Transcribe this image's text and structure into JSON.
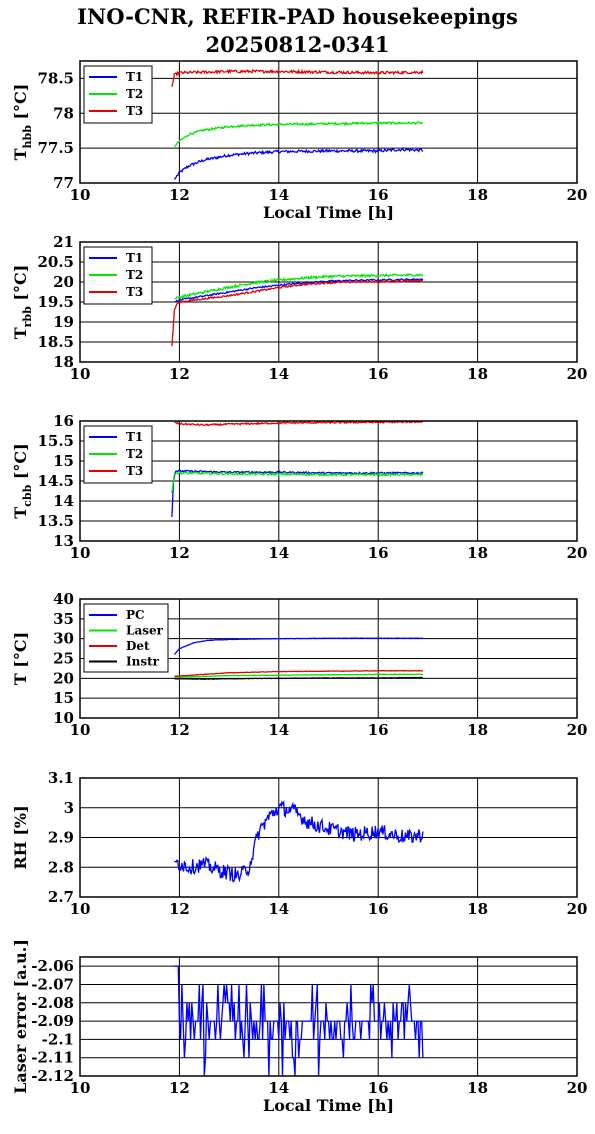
{
  "title": {
    "line1": "INO-CNR, REFIR-PAD housekeepings",
    "line2": "20250812-0341"
  },
  "colors": {
    "blue": "#0000ff",
    "green": "#00e600",
    "red": "#e60000",
    "black": "#000000"
  },
  "chart_data": [
    {
      "id": "hbb",
      "type": "line",
      "xlabel": "Local Time [h]",
      "ylabel_main": "T",
      "ylabel_sub": "hbb",
      "ylabel_unit": "[°C]",
      "xlim": [
        10,
        20
      ],
      "ylim": [
        77,
        78.75
      ],
      "xticks": [
        "10",
        "12",
        "14",
        "16",
        "18",
        "20"
      ],
      "yticks": [
        "77",
        "77.5",
        "78",
        "78.5"
      ],
      "ytick_values": [
        77,
        77.5,
        78,
        78.5
      ],
      "legend": "top-left",
      "series": [
        {
          "name": "T1",
          "color": "#0000ff",
          "noise": 0.02,
          "x": [
            11.9,
            12.0,
            12.2,
            12.5,
            13.0,
            13.5,
            14.0,
            15.0,
            16.0,
            16.5,
            16.9
          ],
          "values": [
            77.05,
            77.15,
            77.25,
            77.33,
            77.4,
            77.43,
            77.45,
            77.46,
            77.46,
            77.48,
            77.47
          ]
        },
        {
          "name": "T2",
          "color": "#00e600",
          "noise": 0.015,
          "x": [
            11.9,
            12.0,
            12.2,
            12.5,
            13.0,
            13.5,
            14.0,
            15.0,
            16.0,
            16.9
          ],
          "values": [
            77.52,
            77.6,
            77.7,
            77.76,
            77.81,
            77.83,
            77.84,
            77.85,
            77.86,
            77.86
          ]
        },
        {
          "name": "T3",
          "color": "#e60000",
          "noise": 0.02,
          "x": [
            11.85,
            11.9,
            12.0,
            13.0,
            14.0,
            15.0,
            16.0,
            16.9
          ],
          "values": [
            78.38,
            78.55,
            78.58,
            78.6,
            78.6,
            78.59,
            78.58,
            78.59
          ]
        }
      ]
    },
    {
      "id": "rbb",
      "type": "line",
      "xlabel": "",
      "ylabel_main": "T",
      "ylabel_sub": "rbb",
      "ylabel_unit": "[°C]",
      "xlim": [
        10,
        20
      ],
      "ylim": [
        18,
        21
      ],
      "xticks": [
        "10",
        "12",
        "14",
        "16",
        "18",
        "20"
      ],
      "yticks": [
        "18",
        "18.5",
        "19",
        "19.5",
        "20",
        "20.5",
        "21"
      ],
      "ytick_values": [
        18,
        18.5,
        19,
        19.5,
        20,
        20.5,
        21
      ],
      "legend": "top-left",
      "series": [
        {
          "name": "T1",
          "color": "#0000ff",
          "noise": 0.02,
          "x": [
            11.9,
            12.0,
            12.5,
            13.0,
            13.5,
            14.0,
            14.5,
            15.0,
            15.5,
            16.0,
            16.5,
            16.9
          ],
          "values": [
            19.5,
            19.55,
            19.65,
            19.75,
            19.85,
            19.92,
            19.98,
            20.02,
            20.04,
            20.05,
            20.06,
            20.07
          ]
        },
        {
          "name": "T2",
          "color": "#00e600",
          "noise": 0.03,
          "x": [
            11.9,
            12.0,
            12.5,
            13.0,
            13.5,
            14.0,
            14.5,
            15.0,
            15.5,
            16.0,
            16.5,
            16.9
          ],
          "values": [
            19.58,
            19.62,
            19.75,
            19.87,
            19.98,
            20.05,
            20.1,
            20.14,
            20.15,
            20.16,
            20.17,
            20.18
          ]
        },
        {
          "name": "T3",
          "color": "#e60000",
          "noise": 0.02,
          "x": [
            11.85,
            11.9,
            11.95,
            12.0,
            12.5,
            13.0,
            13.5,
            14.0,
            14.5,
            15.0,
            15.5,
            16.0,
            16.5,
            16.9
          ],
          "values": [
            18.4,
            19.3,
            19.45,
            19.5,
            19.58,
            19.66,
            19.76,
            19.86,
            19.94,
            19.98,
            20.0,
            20.01,
            20.02,
            20.04
          ]
        }
      ]
    },
    {
      "id": "cbb",
      "type": "line",
      "xlabel": "",
      "ylabel_main": "T",
      "ylabel_sub": "cbb",
      "ylabel_unit": "[°C]",
      "xlim": [
        10,
        20
      ],
      "ylim": [
        13,
        16
      ],
      "xticks": [
        "10",
        "12",
        "14",
        "16",
        "18",
        "20"
      ],
      "yticks": [
        "13",
        "13.5",
        "14",
        "14.5",
        "15",
        "15.5",
        "16"
      ],
      "ytick_values": [
        13,
        13.5,
        14,
        14.5,
        15,
        15.5,
        16
      ],
      "legend": "top-left",
      "series": [
        {
          "name": "T1",
          "color": "#0000ff",
          "noise": 0.02,
          "x": [
            11.85,
            11.88,
            11.92,
            12.0,
            13.0,
            14.0,
            15.0,
            16.0,
            16.9
          ],
          "values": [
            13.6,
            14.5,
            14.75,
            14.75,
            14.72,
            14.72,
            14.7,
            14.7,
            14.7
          ]
        },
        {
          "name": "T2",
          "color": "#00e600",
          "noise": 0.025,
          "x": [
            11.85,
            11.9,
            12.0,
            13.0,
            14.0,
            15.0,
            16.0,
            16.9
          ],
          "values": [
            14.2,
            14.7,
            14.7,
            14.68,
            14.67,
            14.66,
            14.66,
            14.66
          ]
        },
        {
          "name": "T3",
          "color": "#e60000",
          "noise": 0.02,
          "x": [
            11.9,
            12.0,
            12.5,
            13.0,
            14.0,
            15.0,
            16.0,
            16.9
          ],
          "values": [
            15.97,
            15.93,
            15.9,
            15.92,
            15.95,
            15.96,
            15.97,
            15.98
          ]
        }
      ]
    },
    {
      "id": "temps",
      "type": "line",
      "xlabel": "",
      "ylabel_main": "T [°C]",
      "ylabel_sub": "",
      "ylabel_unit": "",
      "xlim": [
        10,
        20
      ],
      "ylim": [
        10,
        40
      ],
      "xticks": [
        "10",
        "12",
        "14",
        "16",
        "18",
        "20"
      ],
      "yticks": [
        "10",
        "15",
        "20",
        "25",
        "30",
        "35",
        "40"
      ],
      "ytick_values": [
        10,
        15,
        20,
        25,
        30,
        35,
        40
      ],
      "legend": "top-left",
      "series": [
        {
          "name": "PC",
          "color": "#0000ff",
          "noise": 0.05,
          "x": [
            11.9,
            12.0,
            12.3,
            12.6,
            13.0,
            14.0,
            15.0,
            16.0,
            16.9
          ],
          "values": [
            26.0,
            27.5,
            29.0,
            29.6,
            29.8,
            30.0,
            30.1,
            30.1,
            30.1
          ]
        },
        {
          "name": "Laser",
          "color": "#00e600",
          "noise": 0.05,
          "x": [
            11.9,
            12.5,
            13.0,
            14.0,
            15.0,
            16.0,
            16.9
          ],
          "values": [
            20.3,
            20.5,
            20.7,
            20.8,
            20.9,
            21.0,
            21.0
          ]
        },
        {
          "name": "Det",
          "color": "#e60000",
          "noise": 0.05,
          "x": [
            11.9,
            12.5,
            13.0,
            14.0,
            15.0,
            16.0,
            16.9
          ],
          "values": [
            20.5,
            21.0,
            21.4,
            21.7,
            21.8,
            21.9,
            21.9
          ]
        },
        {
          "name": "Instr",
          "color": "#000000",
          "noise": 0.05,
          "x": [
            11.9,
            12.5,
            13.0,
            14.0,
            15.0,
            16.0,
            16.9
          ],
          "values": [
            19.9,
            19.8,
            19.9,
            20.0,
            20.1,
            20.1,
            20.2
          ]
        }
      ]
    },
    {
      "id": "rh",
      "type": "line",
      "xlabel": "",
      "ylabel_main": "RH [%]",
      "ylabel_sub": "",
      "ylabel_unit": "",
      "xlim": [
        10,
        20
      ],
      "ylim": [
        2.7,
        3.1
      ],
      "xticks": [
        "10",
        "12",
        "14",
        "16",
        "18",
        "20"
      ],
      "yticks": [
        "2.7",
        "2.8",
        "2.9",
        "3",
        "3.1"
      ],
      "ytick_values": [
        2.7,
        2.8,
        2.9,
        3.0,
        3.1
      ],
      "legend": "none",
      "series": [
        {
          "name": "",
          "color": "#0000ff",
          "noise": 0.025,
          "x": [
            11.9,
            12.2,
            12.5,
            12.8,
            13.0,
            13.2,
            13.4,
            13.6,
            13.8,
            14.0,
            14.3,
            14.6,
            15.0,
            15.5,
            16.0,
            16.3,
            16.6,
            16.9
          ],
          "values": [
            2.82,
            2.8,
            2.81,
            2.79,
            2.78,
            2.77,
            2.8,
            2.92,
            2.97,
            3.0,
            2.99,
            2.95,
            2.93,
            2.91,
            2.92,
            2.91,
            2.9,
            2.91
          ]
        }
      ]
    },
    {
      "id": "laser",
      "type": "line",
      "xlabel": "Local Time [h]",
      "ylabel_main": "Laser error [a.u.]",
      "ylabel_sub": "",
      "ylabel_unit": "",
      "xlim": [
        10,
        20
      ],
      "ylim": [
        -2.12,
        -2.055
      ],
      "xticks": [
        "10",
        "12",
        "14",
        "16",
        "18",
        "20"
      ],
      "yticks": [
        "-2.06",
        "-2.07",
        "-2.08",
        "-2.09",
        "-2.1",
        "-2.11",
        "-2.12"
      ],
      "ytick_values": [
        -2.06,
        -2.07,
        -2.08,
        -2.09,
        -2.1,
        -2.11,
        -2.12
      ],
      "legend": "none",
      "series": [
        {
          "name": "",
          "color": "#0000ff",
          "quantized": true,
          "levels": [
            -2.06,
            -2.08,
            -2.09,
            -2.1,
            -2.105,
            -2.12
          ],
          "x": [
            11.9,
            12.0,
            12.1,
            16.9
          ],
          "values": [
            -2.06,
            -2.06,
            -2.09,
            -2.09
          ]
        }
      ]
    }
  ]
}
